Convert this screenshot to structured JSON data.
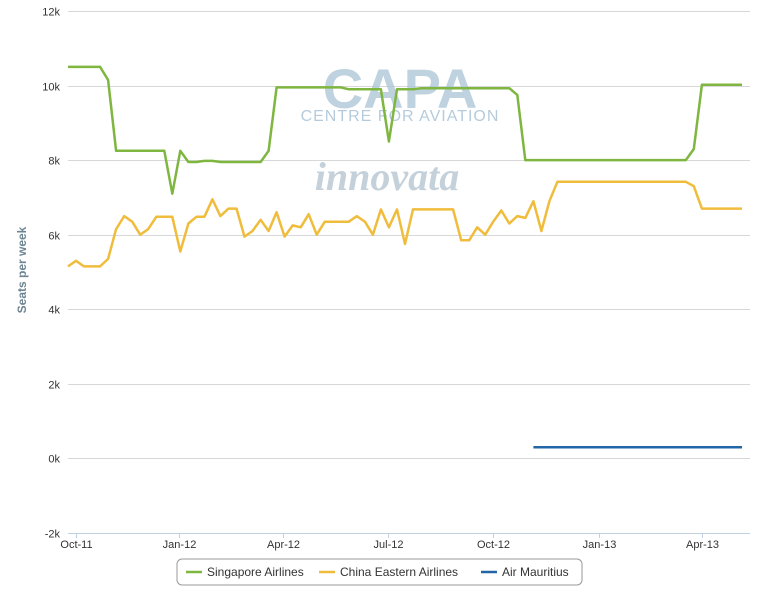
{
  "chart_data": {
    "type": "line",
    "ylabel": "Seats per week",
    "ylim": [
      -2000,
      12000
    ],
    "y_ticks": [
      -2000,
      0,
      2000,
      4000,
      6000,
      8000,
      10000,
      12000
    ],
    "y_tick_labels": [
      "-2k",
      "0k",
      "2k",
      "4k",
      "6k",
      "8k",
      "10k",
      "12k"
    ],
    "x_range": [
      "2011-09-26",
      "2013-05-13"
    ],
    "x_ticks": [
      {
        "date": "2011-10-03",
        "label": "Oct-11"
      },
      {
        "date": "2012-01-01",
        "label": "Jan-12"
      },
      {
        "date": "2012-04-01",
        "label": "Apr-12"
      },
      {
        "date": "2012-07-01",
        "label": "Jul-12"
      },
      {
        "date": "2012-10-01",
        "label": "Oct-12"
      },
      {
        "date": "2013-01-01",
        "label": "Jan-13"
      },
      {
        "date": "2013-04-01",
        "label": "Apr-13"
      }
    ],
    "grid": "horizontal",
    "legend_position": "bottom-center",
    "watermarks": [
      "CAPA",
      "CENTRE FOR AVIATION",
      "innovata"
    ],
    "series": [
      {
        "name": "Singapore Airlines",
        "color": "#7fb640",
        "points": [
          [
            "2011-09-26",
            10500
          ],
          [
            "2011-10-03",
            10500
          ],
          [
            "2011-10-10",
            10500
          ],
          [
            "2011-10-17",
            10500
          ],
          [
            "2011-10-24",
            10500
          ],
          [
            "2011-10-31",
            10150
          ],
          [
            "2011-11-07",
            8250
          ],
          [
            "2011-11-14",
            8250
          ],
          [
            "2011-11-21",
            8250
          ],
          [
            "2011-11-28",
            8250
          ],
          [
            "2011-12-05",
            8250
          ],
          [
            "2011-12-12",
            8250
          ],
          [
            "2011-12-19",
            8250
          ],
          [
            "2011-12-26",
            7100
          ],
          [
            "2012-01-02",
            8250
          ],
          [
            "2012-01-09",
            7950
          ],
          [
            "2012-01-16",
            7950
          ],
          [
            "2012-01-23",
            7980
          ],
          [
            "2012-01-30",
            7980
          ],
          [
            "2012-02-06",
            7950
          ],
          [
            "2012-02-13",
            7950
          ],
          [
            "2012-02-20",
            7950
          ],
          [
            "2012-02-27",
            7950
          ],
          [
            "2012-03-05",
            7950
          ],
          [
            "2012-03-12",
            7950
          ],
          [
            "2012-03-19",
            8250
          ],
          [
            "2012-03-26",
            9950
          ],
          [
            "2012-04-02",
            9950
          ],
          [
            "2012-04-09",
            9950
          ],
          [
            "2012-04-16",
            9950
          ],
          [
            "2012-04-23",
            9950
          ],
          [
            "2012-04-30",
            9950
          ],
          [
            "2012-05-07",
            9950
          ],
          [
            "2012-05-14",
            9950
          ],
          [
            "2012-05-21",
            9950
          ],
          [
            "2012-05-28",
            9900
          ],
          [
            "2012-06-04",
            9900
          ],
          [
            "2012-06-11",
            9900
          ],
          [
            "2012-06-18",
            9900
          ],
          [
            "2012-06-25",
            9900
          ],
          [
            "2012-07-02",
            8500
          ],
          [
            "2012-07-09",
            9900
          ],
          [
            "2012-07-16",
            9900
          ],
          [
            "2012-07-23",
            9900
          ],
          [
            "2012-07-30",
            9930
          ],
          [
            "2012-08-06",
            9930
          ],
          [
            "2012-08-13",
            9930
          ],
          [
            "2012-08-20",
            9930
          ],
          [
            "2012-08-27",
            9930
          ],
          [
            "2012-09-03",
            9930
          ],
          [
            "2012-09-10",
            9930
          ],
          [
            "2012-09-17",
            9930
          ],
          [
            "2012-09-24",
            9930
          ],
          [
            "2012-10-01",
            9930
          ],
          [
            "2012-10-08",
            9930
          ],
          [
            "2012-10-15",
            9930
          ],
          [
            "2012-10-22",
            9750
          ],
          [
            "2012-10-29",
            8000
          ],
          [
            "2012-11-05",
            8000
          ],
          [
            "2012-11-12",
            8000
          ],
          [
            "2012-11-19",
            8000
          ],
          [
            "2012-11-26",
            8000
          ],
          [
            "2012-12-03",
            8000
          ],
          [
            "2012-12-10",
            8000
          ],
          [
            "2012-12-17",
            8000
          ],
          [
            "2012-12-24",
            8000
          ],
          [
            "2012-12-31",
            8000
          ],
          [
            "2013-01-07",
            8000
          ],
          [
            "2013-01-14",
            8000
          ],
          [
            "2013-01-21",
            8000
          ],
          [
            "2013-01-28",
            8000
          ],
          [
            "2013-02-04",
            8000
          ],
          [
            "2013-02-11",
            8000
          ],
          [
            "2013-02-18",
            8000
          ],
          [
            "2013-02-25",
            8000
          ],
          [
            "2013-03-04",
            8000
          ],
          [
            "2013-03-11",
            8000
          ],
          [
            "2013-03-18",
            8000
          ],
          [
            "2013-03-25",
            8300
          ],
          [
            "2013-04-01",
            10020
          ],
          [
            "2013-04-08",
            10020
          ],
          [
            "2013-04-15",
            10020
          ],
          [
            "2013-04-22",
            10020
          ],
          [
            "2013-04-29",
            10020
          ],
          [
            "2013-05-06",
            10020
          ]
        ]
      },
      {
        "name": "China Eastern Airlines",
        "color": "#f0bc3c",
        "points": [
          [
            "2011-09-26",
            5150
          ],
          [
            "2011-10-03",
            5300
          ],
          [
            "2011-10-10",
            5150
          ],
          [
            "2011-10-17",
            5150
          ],
          [
            "2011-10-24",
            5150
          ],
          [
            "2011-10-31",
            5350
          ],
          [
            "2011-11-07",
            6150
          ],
          [
            "2011-11-14",
            6500
          ],
          [
            "2011-11-21",
            6350
          ],
          [
            "2011-11-28",
            6000
          ],
          [
            "2011-12-05",
            6150
          ],
          [
            "2011-12-12",
            6480
          ],
          [
            "2011-12-19",
            6480
          ],
          [
            "2011-12-26",
            6480
          ],
          [
            "2012-01-02",
            5550
          ],
          [
            "2012-01-09",
            6300
          ],
          [
            "2012-01-16",
            6480
          ],
          [
            "2012-01-23",
            6480
          ],
          [
            "2012-01-30",
            6950
          ],
          [
            "2012-02-06",
            6500
          ],
          [
            "2012-02-13",
            6700
          ],
          [
            "2012-02-20",
            6700
          ],
          [
            "2012-02-27",
            5950
          ],
          [
            "2012-03-05",
            6100
          ],
          [
            "2012-03-12",
            6400
          ],
          [
            "2012-03-19",
            6100
          ],
          [
            "2012-03-26",
            6600
          ],
          [
            "2012-04-02",
            5950
          ],
          [
            "2012-04-09",
            6250
          ],
          [
            "2012-04-16",
            6200
          ],
          [
            "2012-04-23",
            6550
          ],
          [
            "2012-04-30",
            6000
          ],
          [
            "2012-05-07",
            6350
          ],
          [
            "2012-05-14",
            6350
          ],
          [
            "2012-05-21",
            6350
          ],
          [
            "2012-05-28",
            6350
          ],
          [
            "2012-06-04",
            6500
          ],
          [
            "2012-06-11",
            6350
          ],
          [
            "2012-06-18",
            6000
          ],
          [
            "2012-06-25",
            6680
          ],
          [
            "2012-07-02",
            6200
          ],
          [
            "2012-07-09",
            6680
          ],
          [
            "2012-07-16",
            5750
          ],
          [
            "2012-07-23",
            6680
          ],
          [
            "2012-07-30",
            6680
          ],
          [
            "2012-08-06",
            6680
          ],
          [
            "2012-08-13",
            6680
          ],
          [
            "2012-08-20",
            6680
          ],
          [
            "2012-08-27",
            6680
          ],
          [
            "2012-09-03",
            5850
          ],
          [
            "2012-09-10",
            5850
          ],
          [
            "2012-09-17",
            6200
          ],
          [
            "2012-09-24",
            6000
          ],
          [
            "2012-10-01",
            6350
          ],
          [
            "2012-10-08",
            6650
          ],
          [
            "2012-10-15",
            6300
          ],
          [
            "2012-10-22",
            6500
          ],
          [
            "2012-10-29",
            6450
          ],
          [
            "2012-11-05",
            6900
          ],
          [
            "2012-11-12",
            6100
          ],
          [
            "2012-11-19",
            6900
          ],
          [
            "2012-11-26",
            7420
          ],
          [
            "2012-12-03",
            7420
          ],
          [
            "2012-12-10",
            7420
          ],
          [
            "2012-12-17",
            7420
          ],
          [
            "2012-12-24",
            7420
          ],
          [
            "2012-12-31",
            7420
          ],
          [
            "2013-01-07",
            7420
          ],
          [
            "2013-01-14",
            7420
          ],
          [
            "2013-01-21",
            7420
          ],
          [
            "2013-01-28",
            7420
          ],
          [
            "2013-02-04",
            7420
          ],
          [
            "2013-02-11",
            7420
          ],
          [
            "2013-02-18",
            7420
          ],
          [
            "2013-02-25",
            7420
          ],
          [
            "2013-03-04",
            7420
          ],
          [
            "2013-03-11",
            7420
          ],
          [
            "2013-03-18",
            7420
          ],
          [
            "2013-03-25",
            7300
          ],
          [
            "2013-04-01",
            6700
          ],
          [
            "2013-04-08",
            6700
          ],
          [
            "2013-04-15",
            6700
          ],
          [
            "2013-04-22",
            6700
          ],
          [
            "2013-04-29",
            6700
          ],
          [
            "2013-05-06",
            6700
          ]
        ]
      },
      {
        "name": "Air Mauritius",
        "color": "#2266a8",
        "points": [
          [
            "2012-11-05",
            300
          ],
          [
            "2012-11-12",
            300
          ],
          [
            "2012-11-19",
            300
          ],
          [
            "2012-11-26",
            300
          ],
          [
            "2012-12-03",
            300
          ],
          [
            "2012-12-10",
            300
          ],
          [
            "2012-12-17",
            300
          ],
          [
            "2012-12-24",
            300
          ],
          [
            "2012-12-31",
            300
          ],
          [
            "2013-01-07",
            300
          ],
          [
            "2013-01-14",
            300
          ],
          [
            "2013-01-21",
            300
          ],
          [
            "2013-01-28",
            300
          ],
          [
            "2013-02-04",
            300
          ],
          [
            "2013-02-11",
            300
          ],
          [
            "2013-02-18",
            300
          ],
          [
            "2013-02-25",
            300
          ],
          [
            "2013-03-04",
            300
          ],
          [
            "2013-03-11",
            300
          ],
          [
            "2013-03-18",
            300
          ],
          [
            "2013-03-25",
            300
          ],
          [
            "2013-04-01",
            300
          ],
          [
            "2013-04-08",
            300
          ],
          [
            "2013-04-15",
            300
          ],
          [
            "2013-04-22",
            300
          ],
          [
            "2013-04-29",
            300
          ],
          [
            "2013-05-06",
            300
          ]
        ]
      }
    ]
  }
}
